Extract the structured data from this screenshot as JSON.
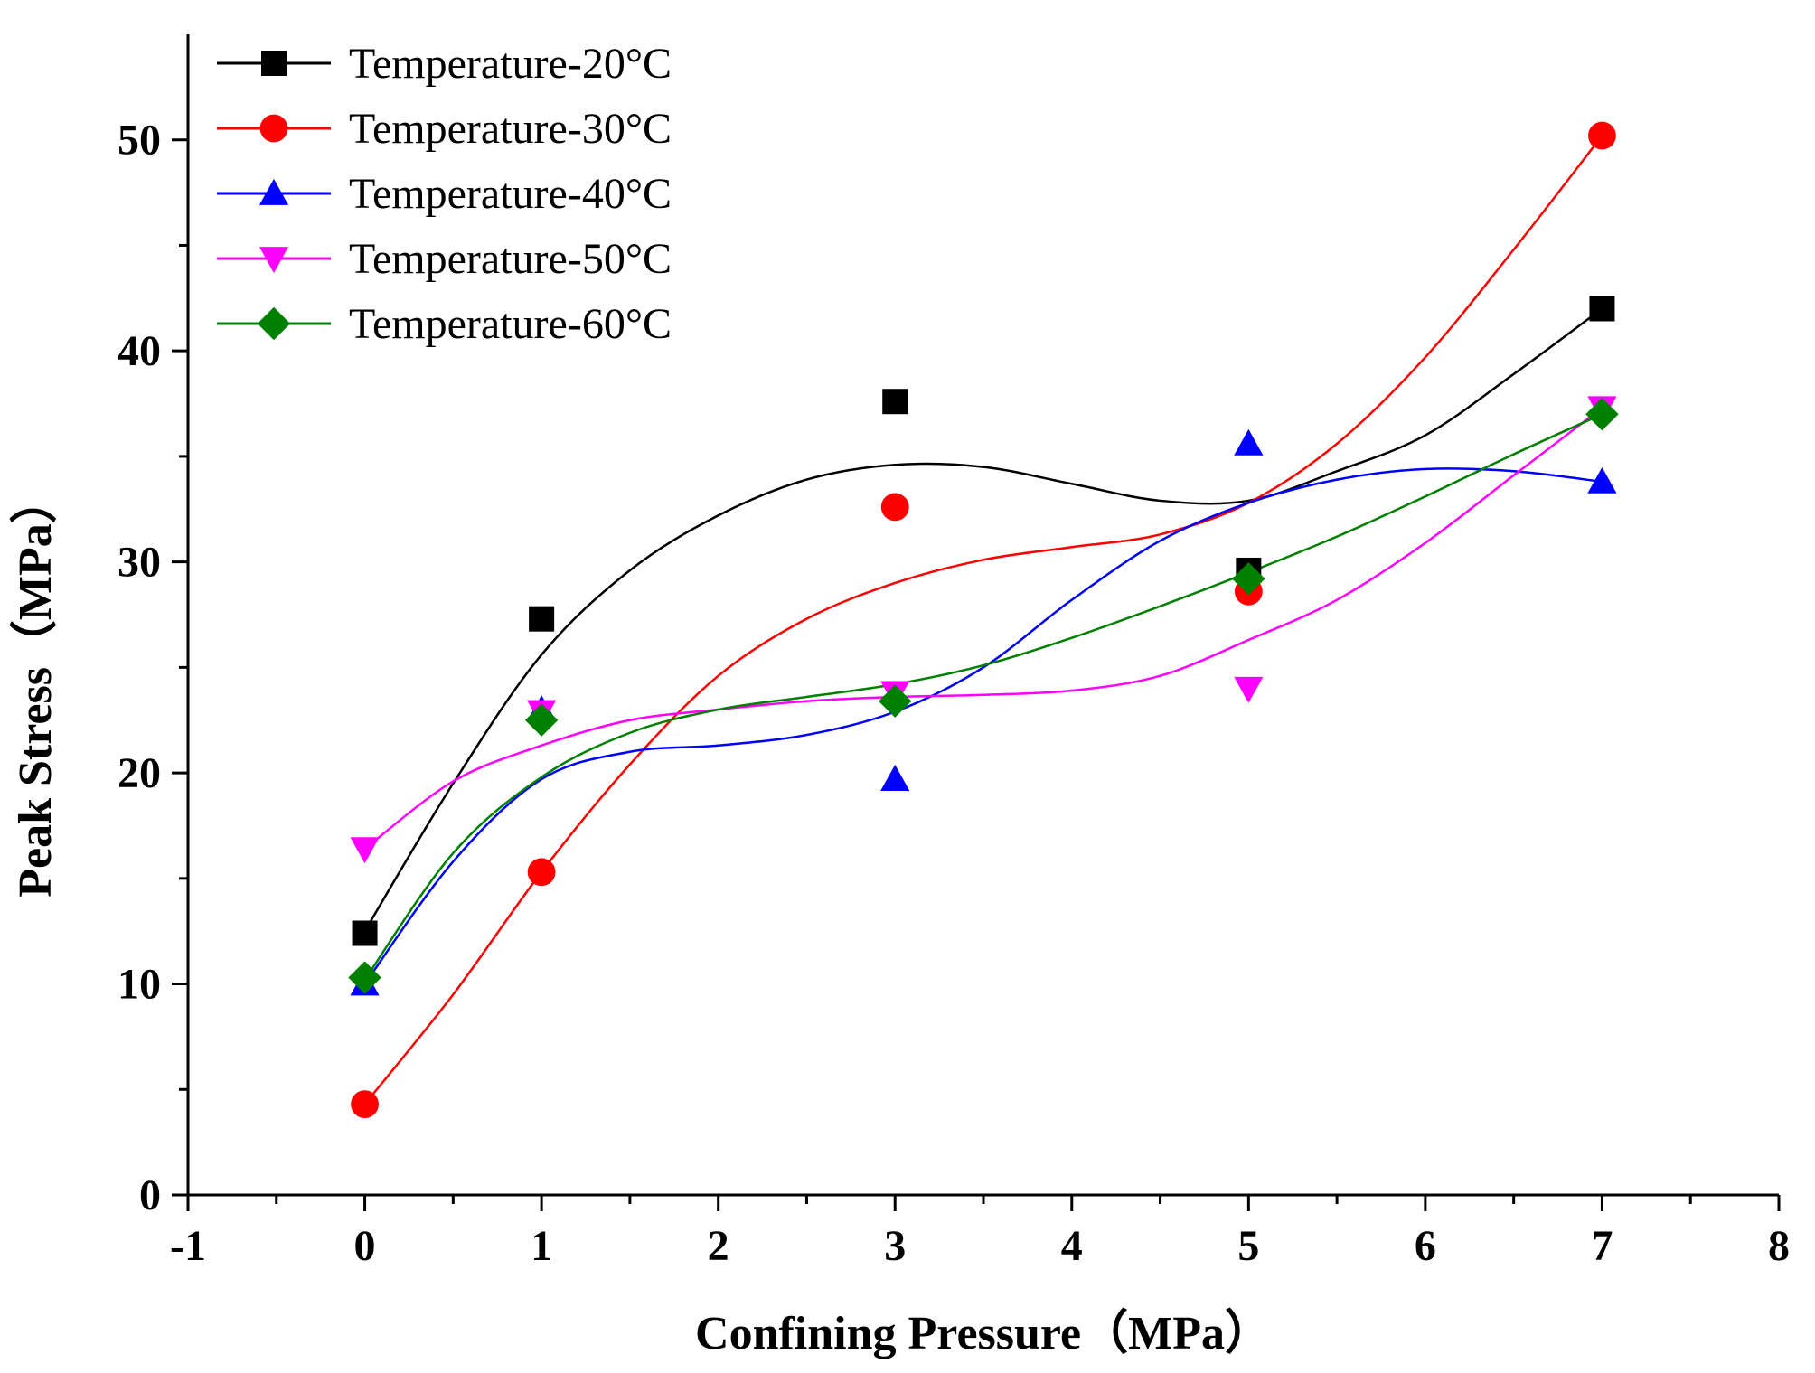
{
  "chart_data": {
    "type": "line",
    "title": "",
    "xlabel": "Confining Pressure（MPa）",
    "ylabel": "Peak Stress（MPa）",
    "xlim": [
      -1,
      8
    ],
    "ylim": [
      0,
      55
    ],
    "xticks": [
      -1,
      0,
      1,
      2,
      3,
      4,
      5,
      6,
      7,
      8
    ],
    "yticks": [
      0,
      10,
      20,
      30,
      40,
      50
    ],
    "x": [
      0,
      1,
      3,
      5,
      7
    ],
    "legend_position": "top-left",
    "grid": false,
    "series": [
      {
        "name": "Temperature-20°C",
        "color": "#000000",
        "marker": "square",
        "values": [
          12.4,
          27.3,
          37.6,
          29.6,
          42.0
        ],
        "fit_x": [
          0,
          0.5,
          1,
          1.5,
          2,
          2.5,
          3,
          3.5,
          4,
          4.5,
          5,
          5.5,
          6,
          6.5,
          7
        ],
        "fit_y": [
          12.5,
          19.5,
          25.6,
          29.6,
          32.2,
          33.9,
          34.6,
          34.5,
          33.7,
          32.9,
          32.9,
          34.3,
          36.0,
          38.9,
          42.0
        ]
      },
      {
        "name": "Temperature-30°C",
        "color": "#ff0000",
        "marker": "circle",
        "values": [
          4.3,
          15.3,
          32.6,
          28.6,
          50.2
        ],
        "fit_x": [
          0,
          0.5,
          1,
          1.5,
          2,
          2.5,
          3,
          3.5,
          4,
          4.5,
          5,
          5.5,
          6,
          6.5,
          7
        ],
        "fit_y": [
          4.3,
          9.5,
          15.3,
          20.4,
          24.6,
          27.3,
          29.0,
          30.1,
          30.7,
          31.3,
          32.8,
          35.6,
          39.7,
          44.8,
          50.2
        ]
      },
      {
        "name": "Temperature-40°C",
        "color": "#0000ff",
        "marker": "triangle-up",
        "values": [
          10.0,
          23.0,
          19.7,
          35.6,
          33.8
        ],
        "fit_x": [
          0,
          0.5,
          1,
          1.5,
          2,
          2.5,
          3,
          3.5,
          4,
          4.5,
          5,
          5.5,
          6,
          6.5,
          7
        ],
        "fit_y": [
          10.0,
          15.8,
          19.7,
          21.0,
          21.3,
          21.8,
          22.9,
          25.0,
          28.2,
          31.0,
          32.8,
          33.9,
          34.4,
          34.3,
          33.8
        ]
      },
      {
        "name": "Temperature-50°C",
        "color": "#ff00ff",
        "marker": "triangle-down",
        "values": [
          16.4,
          22.9,
          23.8,
          24.0,
          37.3
        ],
        "fit_x": [
          0,
          0.5,
          1,
          1.5,
          2,
          2.5,
          3,
          3.5,
          4,
          4.5,
          5,
          5.5,
          6,
          6.5,
          7
        ],
        "fit_y": [
          16.4,
          19.6,
          21.3,
          22.5,
          23.0,
          23.4,
          23.6,
          23.7,
          23.9,
          24.6,
          26.3,
          28.2,
          30.9,
          34.1,
          37.3
        ]
      },
      {
        "name": "Temperature-60°C",
        "color": "#008000",
        "marker": "diamond",
        "values": [
          10.3,
          22.5,
          23.4,
          29.2,
          37.0
        ],
        "fit_x": [
          0,
          0.5,
          1,
          1.5,
          2,
          2.5,
          3,
          3.5,
          4,
          4.5,
          5,
          5.5,
          6,
          6.5,
          7
        ],
        "fit_y": [
          10.2,
          16.2,
          19.8,
          21.9,
          23.0,
          23.6,
          24.2,
          25.1,
          26.4,
          27.9,
          29.5,
          31.2,
          33.1,
          35.1,
          37.0
        ]
      }
    ]
  }
}
